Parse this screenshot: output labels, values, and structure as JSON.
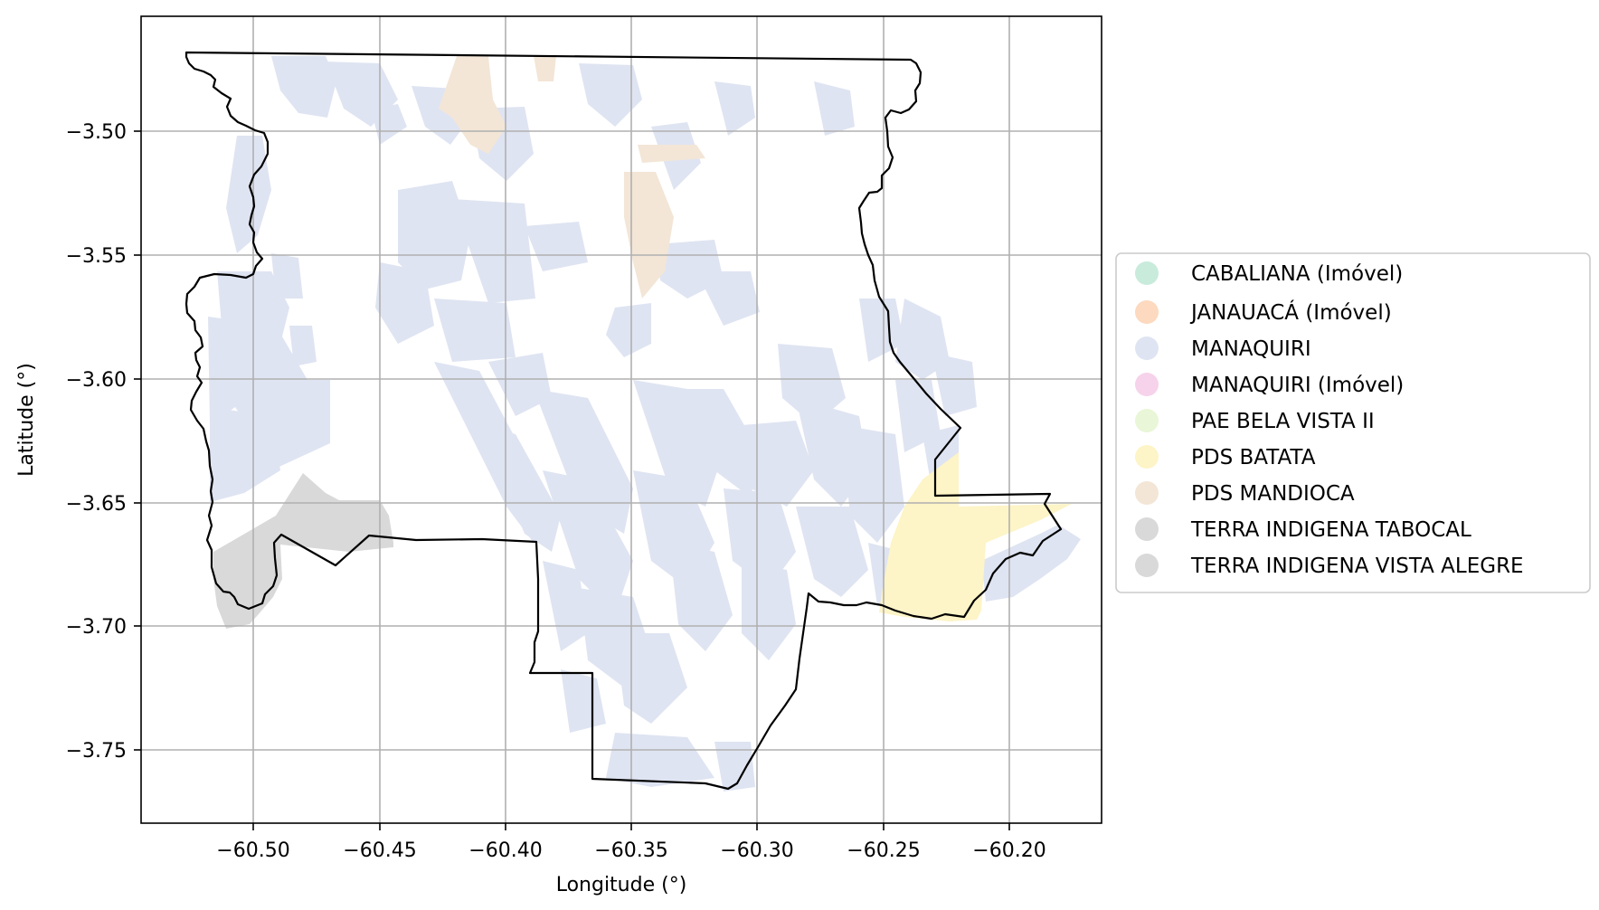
{
  "map": {
    "xlabel": "Longitude (°)",
    "ylabel": "Latitude (°)",
    "x_ticks": [
      "−60.50",
      "−60.45",
      "−60.40",
      "−60.35",
      "−60.30",
      "−60.25",
      "−60.20"
    ],
    "y_ticks": [
      "−3.50",
      "−3.55",
      "−3.60",
      "−3.65",
      "−3.70",
      "−3.75"
    ],
    "grid": true,
    "legend": {
      "placement": "right",
      "items": [
        {
          "label": "CABALIANA (Imóvel)",
          "color": "#c8ebdc"
        },
        {
          "label": "JANAUACÁ (Imóvel)",
          "color": "#fcd9bf"
        },
        {
          "label": "MANAQUIRI",
          "color": "#dfe4f2"
        },
        {
          "label": "MANAQUIRI (Imóvel)",
          "color": "#f6d3ea"
        },
        {
          "label": "PAE BELA VISTA II",
          "color": "#e9f6d7"
        },
        {
          "label": "PDS BATATA",
          "color": "#fdf4c7"
        },
        {
          "label": "PDS MANDIOCA",
          "color": "#f3e6d7"
        },
        {
          "label": "TERRA INDIGENA TABOCAL",
          "color": "#d9d9d9"
        },
        {
          "label": "TERRA INDIGENA VISTA ALEGRE",
          "color": "#d9d9d9"
        }
      ]
    },
    "colors": {
      "boundary": "#000000",
      "grid": "#b0b0b0",
      "manaquiri": "#dfe4f2",
      "pds_batata": "#fdf4c7",
      "pds_mandioca": "#f3e6d7",
      "terra_indigena": "#d9d9d9"
    }
  }
}
